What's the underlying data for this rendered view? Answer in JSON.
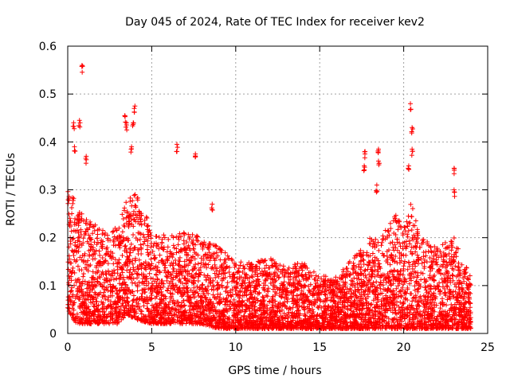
{
  "chart_data": {
    "type": "scatter",
    "title": "Day 045 of 2024, Rate Of TEC Index for receiver kev2",
    "xlabel": "GPS time / hours",
    "ylabel": "ROTI / TECUs",
    "xlim": [
      0,
      25
    ],
    "ylim": [
      0,
      0.6
    ],
    "x_ticks": [
      0,
      5,
      10,
      15,
      20,
      25
    ],
    "x_tick_labels": [
      "0",
      "5",
      "10",
      "15",
      "20",
      "25"
    ],
    "y_ticks": [
      0,
      0.1,
      0.2,
      0.3,
      0.4,
      0.5,
      0.6
    ],
    "y_tick_labels": [
      "0",
      "0.1",
      "0.2",
      "0.3",
      "0.4",
      "0.5",
      "0.6"
    ],
    "grid": true,
    "marker": "+",
    "color": "#ff0000",
    "series": [
      {
        "name": "ROTI",
        "x_range": [
          0,
          24
        ],
        "notable_points": [
          {
            "x": 0.85,
            "y": 0.56
          },
          {
            "x": 0.7,
            "y": 0.445
          },
          {
            "x": 0.35,
            "y": 0.44
          },
          {
            "x": 0.4,
            "y": 0.39
          },
          {
            "x": 1.1,
            "y": 0.37
          },
          {
            "x": 3.4,
            "y": 0.455
          },
          {
            "x": 3.5,
            "y": 0.44
          },
          {
            "x": 4.0,
            "y": 0.475
          },
          {
            "x": 3.9,
            "y": 0.44
          },
          {
            "x": 3.8,
            "y": 0.39
          },
          {
            "x": 6.5,
            "y": 0.395
          },
          {
            "x": 7.6,
            "y": 0.375
          },
          {
            "x": 8.6,
            "y": 0.27
          },
          {
            "x": 17.7,
            "y": 0.38
          },
          {
            "x": 17.65,
            "y": 0.35
          },
          {
            "x": 18.5,
            "y": 0.385
          },
          {
            "x": 18.5,
            "y": 0.36
          },
          {
            "x": 18.4,
            "y": 0.31
          },
          {
            "x": 20.4,
            "y": 0.48
          },
          {
            "x": 20.5,
            "y": 0.43
          },
          {
            "x": 20.5,
            "y": 0.385
          },
          {
            "x": 20.3,
            "y": 0.35
          },
          {
            "x": 23.0,
            "y": 0.345
          },
          {
            "x": 23.0,
            "y": 0.3
          }
        ],
        "envelope": {
          "description": "approximate upper/lower bounds of the dense point cloud vs hour",
          "hours": [
            0,
            0.5,
            1,
            2,
            3,
            3.5,
            4,
            5,
            6,
            7,
            8,
            9,
            10,
            11,
            12,
            13,
            14,
            15,
            16,
            17,
            18,
            19,
            19.5,
            20,
            20.5,
            21,
            22,
            23,
            24
          ],
          "upper": [
            0.3,
            0.28,
            0.24,
            0.22,
            0.22,
            0.28,
            0.3,
            0.22,
            0.2,
            0.22,
            0.2,
            0.18,
            0.15,
            0.15,
            0.16,
            0.14,
            0.15,
            0.12,
            0.12,
            0.16,
            0.2,
            0.22,
            0.25,
            0.22,
            0.28,
            0.2,
            0.18,
            0.2,
            0.12
          ],
          "lower": [
            0.05,
            0.02,
            0.02,
            0.02,
            0.02,
            0.04,
            0.03,
            0.02,
            0.02,
            0.02,
            0.02,
            0.01,
            0.01,
            0.01,
            0.01,
            0.01,
            0.01,
            0.01,
            0.01,
            0.01,
            0.01,
            0.01,
            0.01,
            0.01,
            0.01,
            0.01,
            0.01,
            0.01,
            0.01
          ]
        }
      }
    ]
  }
}
